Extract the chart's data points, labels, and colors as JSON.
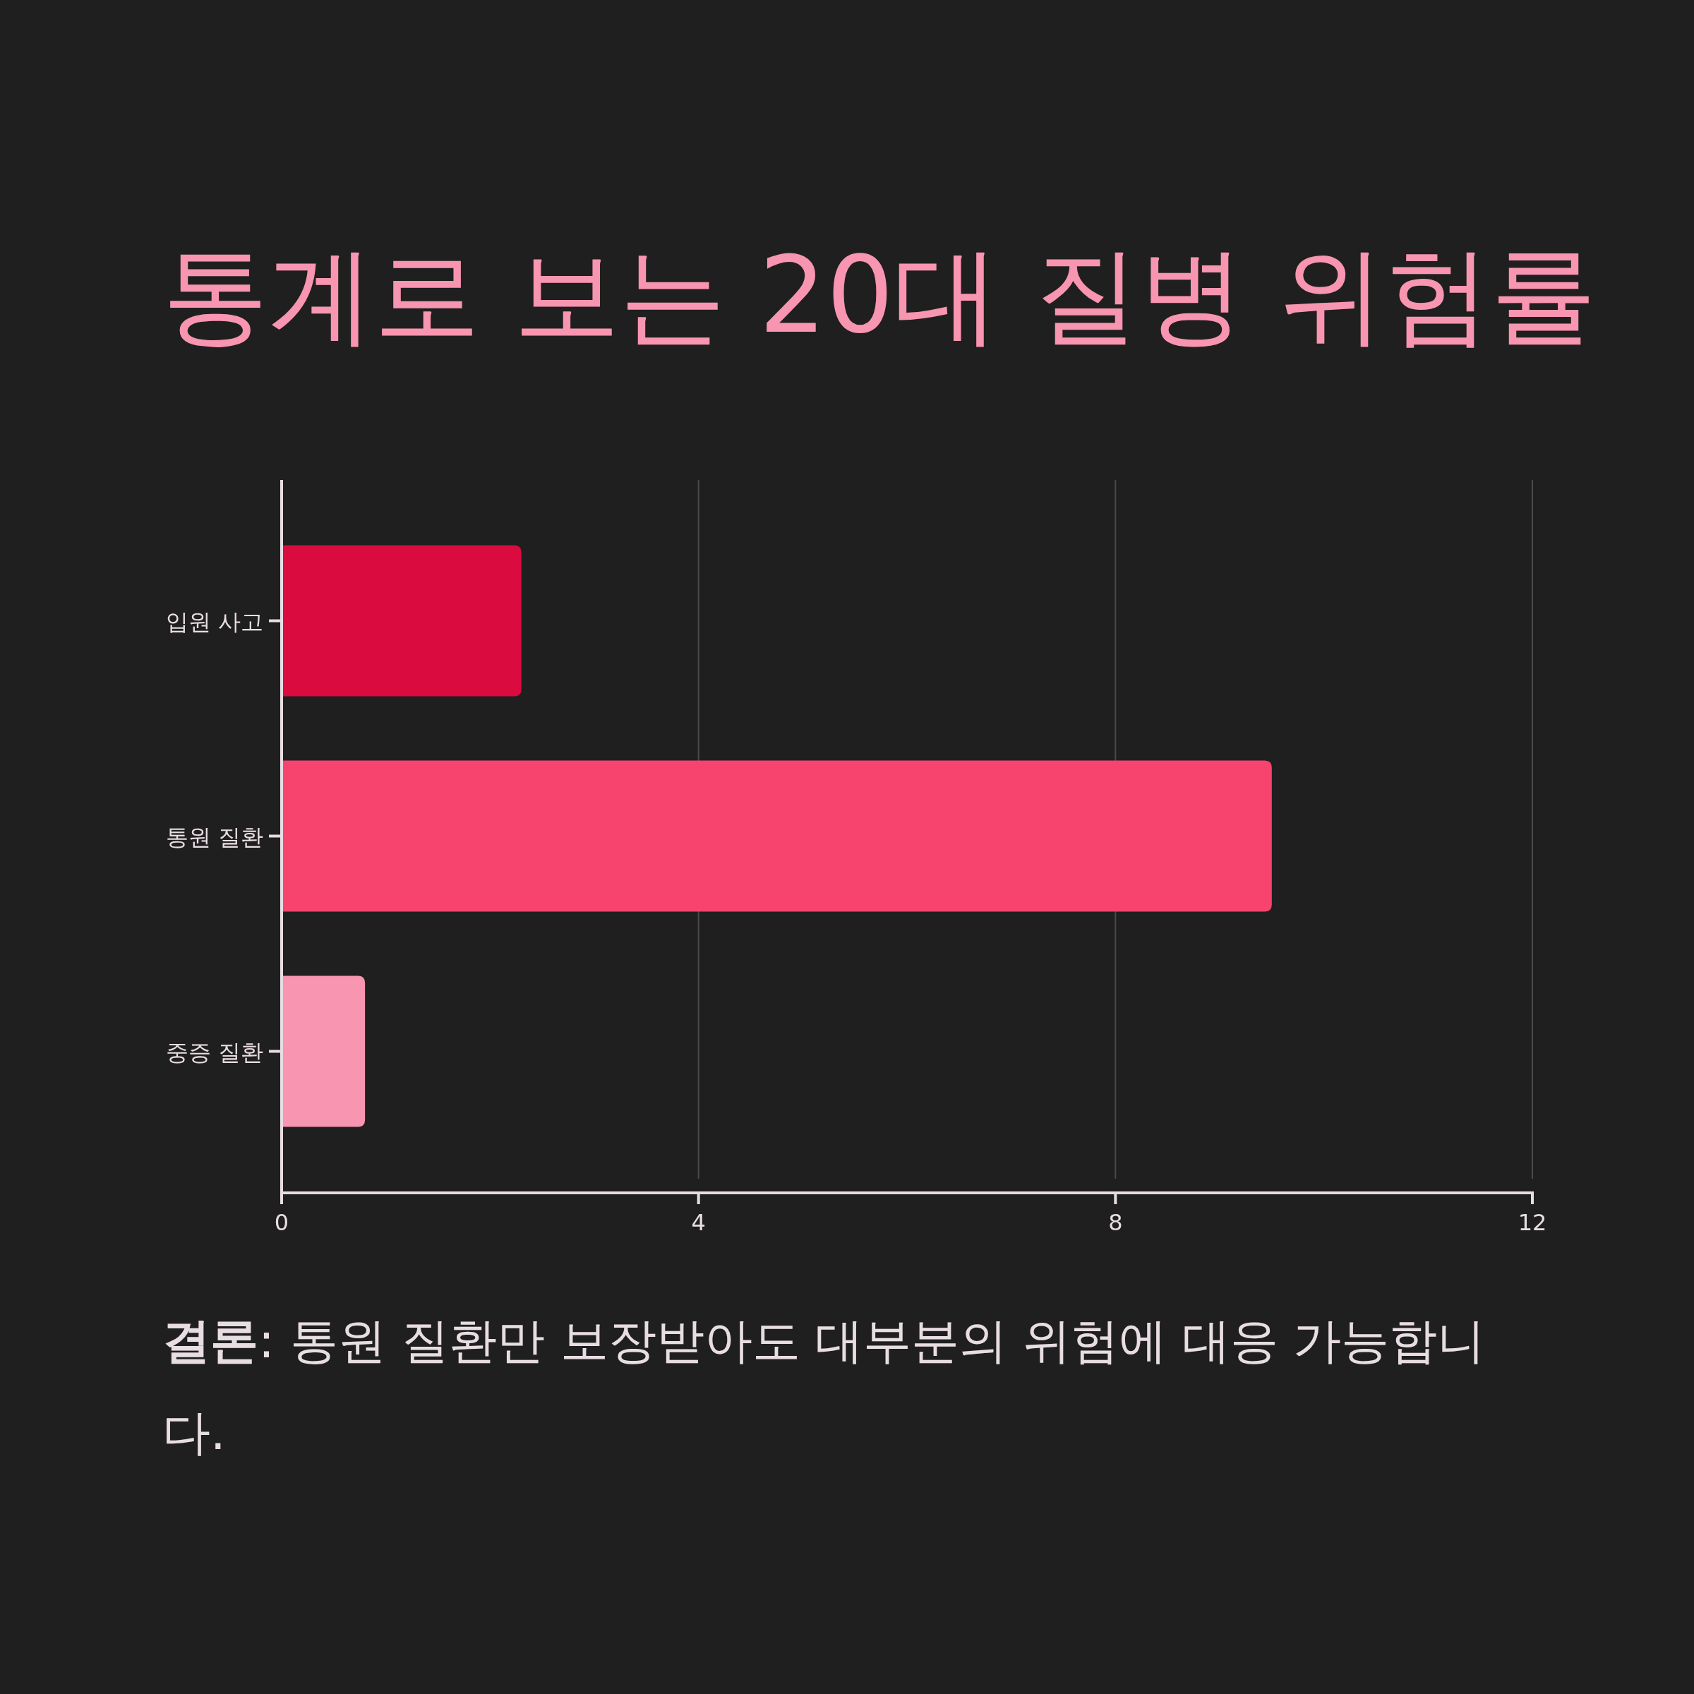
{
  "chart_data": {
    "type": "bar",
    "orientation": "horizontal",
    "title": "통계로 보는 20대 질병 위험률",
    "categories": [
      "입원 사고",
      "통원 질환",
      "중증 질환"
    ],
    "values": [
      2.3,
      9.5,
      0.8
    ],
    "colors": [
      "#da0b3f",
      "#f7446f",
      "#f895b0"
    ],
    "xlim": [
      0,
      12
    ],
    "xticks": [
      0,
      4,
      8,
      12
    ],
    "grid": "x",
    "annotations": [
      "결론: 통원 질환만 보장받아도 대부분의 위험에 대응 가능합니다."
    ]
  }
}
